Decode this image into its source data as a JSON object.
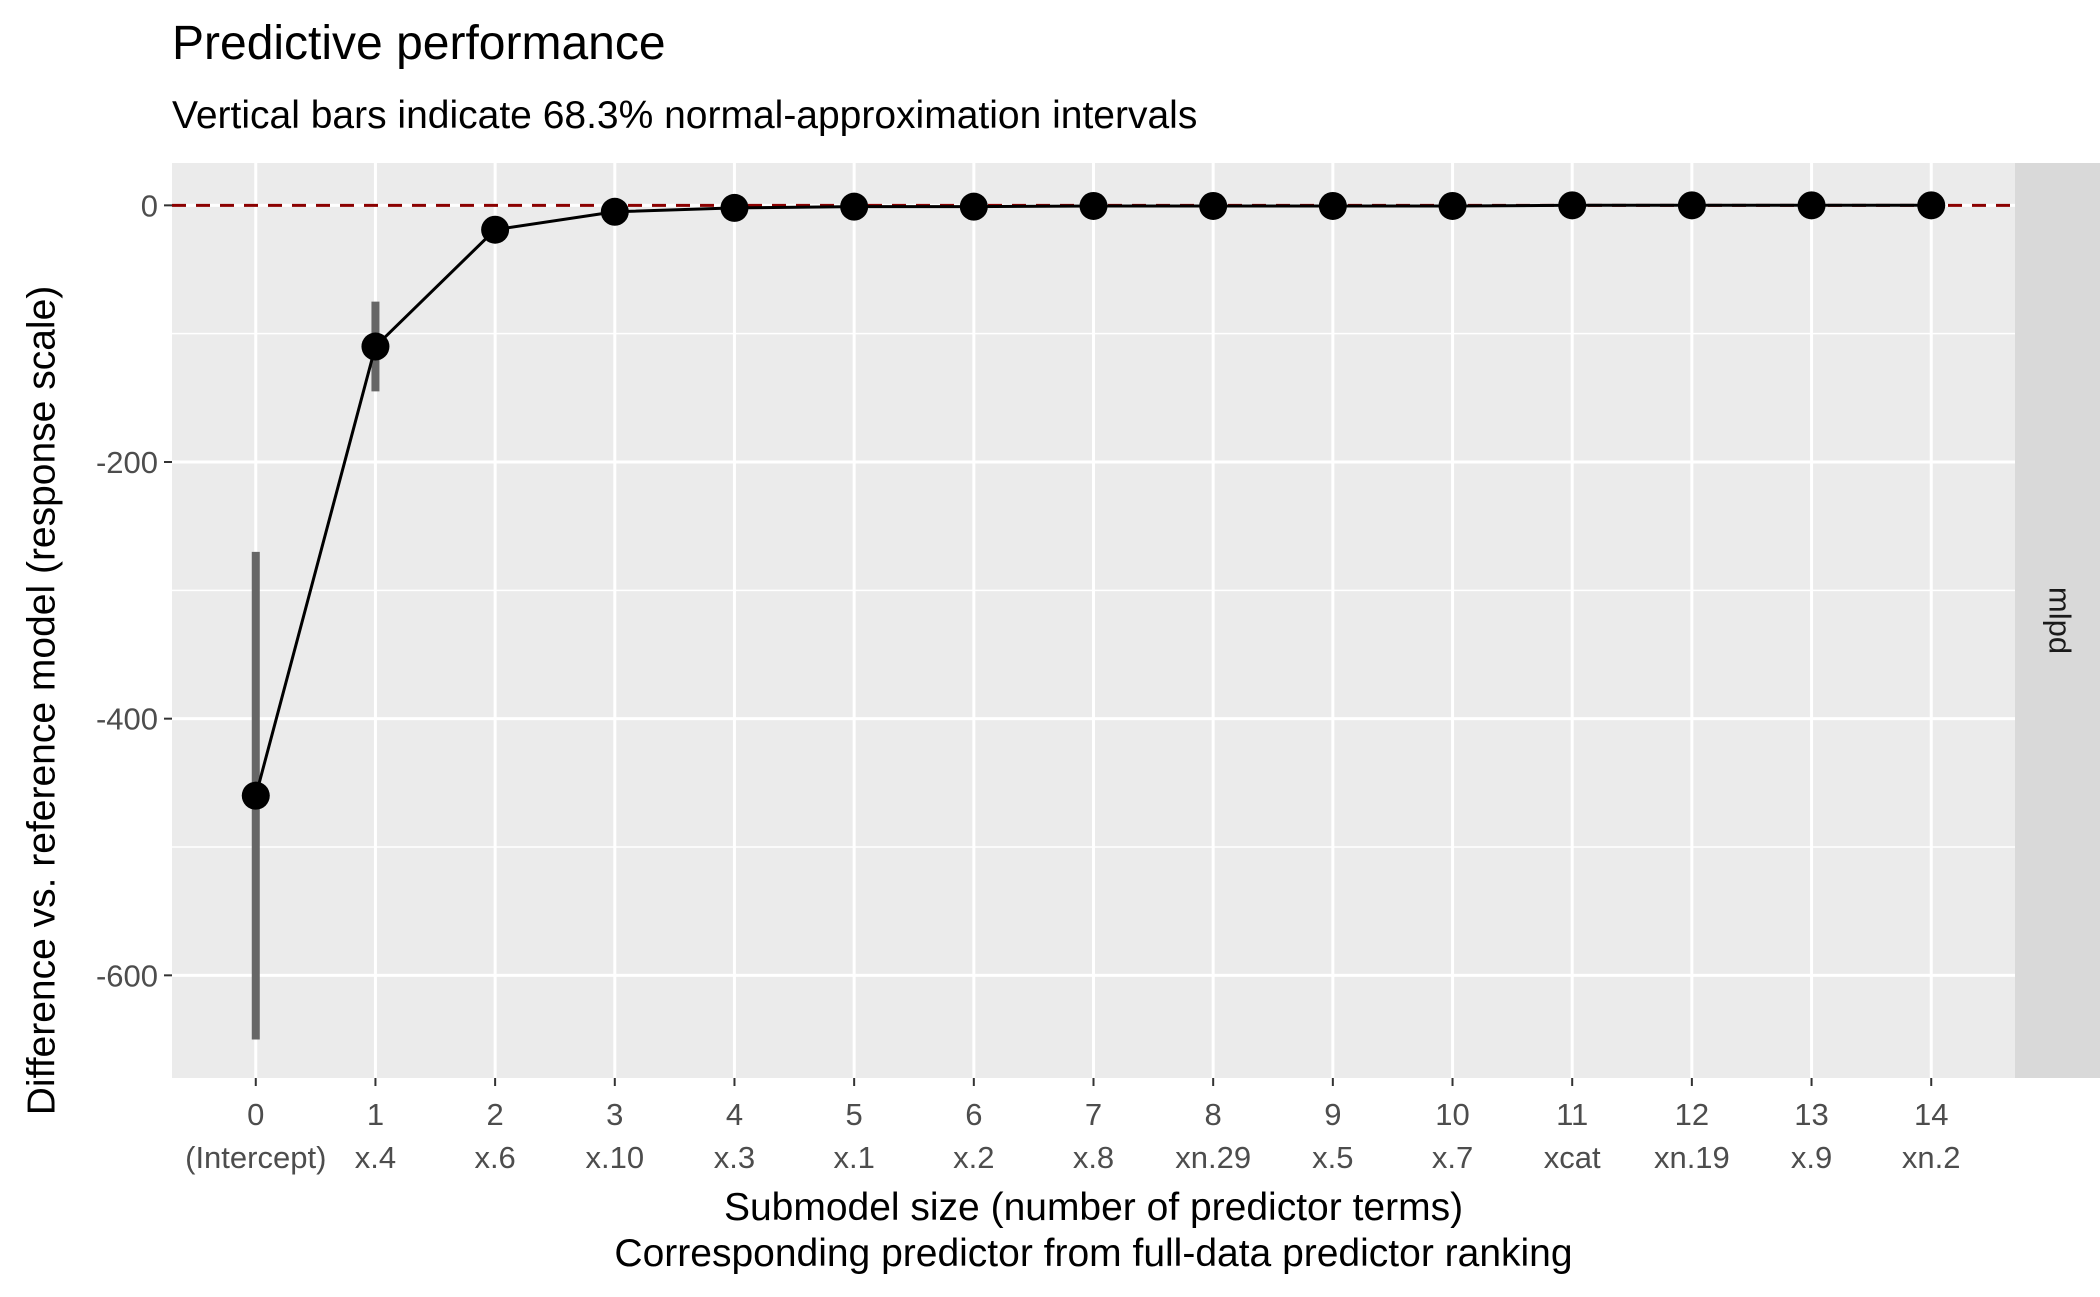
{
  "chart_data": {
    "type": "line",
    "title": "Predictive performance",
    "subtitle": "Vertical bars indicate 68.3% normal-approximation intervals",
    "xlabel": "Submodel size (number of predictor terms)",
    "xlabel2": "Corresponding predictor from full-data predictor ranking",
    "ylabel": "Difference vs. reference model (response scale)",
    "facet_label": "mlpd",
    "x": [
      0,
      1,
      2,
      3,
      4,
      5,
      6,
      7,
      8,
      9,
      10,
      11,
      12,
      13,
      14
    ],
    "predictor_labels": [
      "(Intercept)",
      "x.4",
      "x.6",
      "x.10",
      "x.3",
      "x.1",
      "x.2",
      "x.8",
      "xn.29",
      "x.5",
      "x.7",
      "xcat",
      "xn.19",
      "x.9",
      "xn.2"
    ],
    "series": [
      {
        "values": [
          -460,
          -110,
          -19,
          -5,
          -2,
          -1,
          -1,
          -0.5,
          -0.5,
          -0.5,
          -0.5,
          0,
          0,
          0,
          0
        ],
        "lower": [
          -650,
          -145,
          -21,
          -6,
          -2.5,
          -1.5,
          -1.5,
          -1,
          -1,
          -1,
          -1,
          -0.5,
          -0.5,
          -0.5,
          -0.5
        ],
        "upper": [
          -270,
          -75,
          -17,
          -4,
          -1.5,
          -0.5,
          -0.5,
          0,
          0,
          0,
          0,
          0.5,
          0.5,
          0.5,
          0.5
        ]
      }
    ],
    "reference_line": 0,
    "y_ticks": [
      0,
      -200,
      -400,
      -600
    ],
    "ylim": [
      -680,
      33
    ],
    "xlim": [
      -0.7,
      14.7
    ],
    "grid": true,
    "colors": {
      "panel": "#ebebeb",
      "grid": "#ffffff",
      "line": "#000000",
      "point": "#000000",
      "interval": "#666666",
      "reference": "#8b0000",
      "strip": "#d9d9d9"
    }
  }
}
